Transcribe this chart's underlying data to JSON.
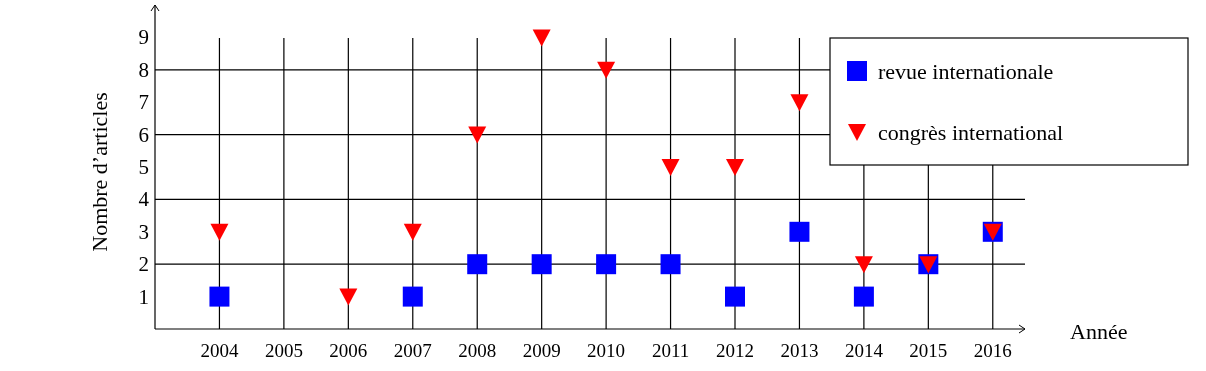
{
  "chart_data": {
    "type": "scatter",
    "xlabel": "Année",
    "ylabel": "Nombre d’articles",
    "x": [
      2004,
      2005,
      2006,
      2007,
      2008,
      2009,
      2010,
      2011,
      2012,
      2013,
      2014,
      2015,
      2016
    ],
    "xlim": [
      2003,
      2016.5
    ],
    "xticks": [
      2004,
      2005,
      2006,
      2007,
      2008,
      2009,
      2010,
      2011,
      2012,
      2013,
      2014,
      2015,
      2016
    ],
    "ylim": [
      0,
      10
    ],
    "yticks": [
      1,
      2,
      3,
      4,
      5,
      6,
      7,
      8,
      9
    ],
    "grid": "x",
    "legend": "top right",
    "ref_lines": [
      {
        "axis": "y",
        "value": 2,
        "color": "#000000"
      },
      {
        "axis": "y",
        "value": 4,
        "color": "#000000"
      },
      {
        "axis": "y",
        "value": 6,
        "color": "#000000"
      },
      {
        "axis": "y",
        "value": 8,
        "color": "#000000"
      }
    ],
    "series": [
      {
        "name": "revue internationale",
        "color": "#0000ff",
        "marker": "square",
        "values": [
          1,
          null,
          null,
          1,
          2,
          2,
          2,
          2,
          1,
          3,
          1,
          2,
          3
        ]
      },
      {
        "name": "congrès international",
        "color": "#ff0000",
        "marker": "triangle",
        "values": [
          3,
          null,
          1,
          3,
          6,
          9,
          8,
          5,
          5,
          7,
          2,
          2,
          3
        ]
      }
    ]
  }
}
